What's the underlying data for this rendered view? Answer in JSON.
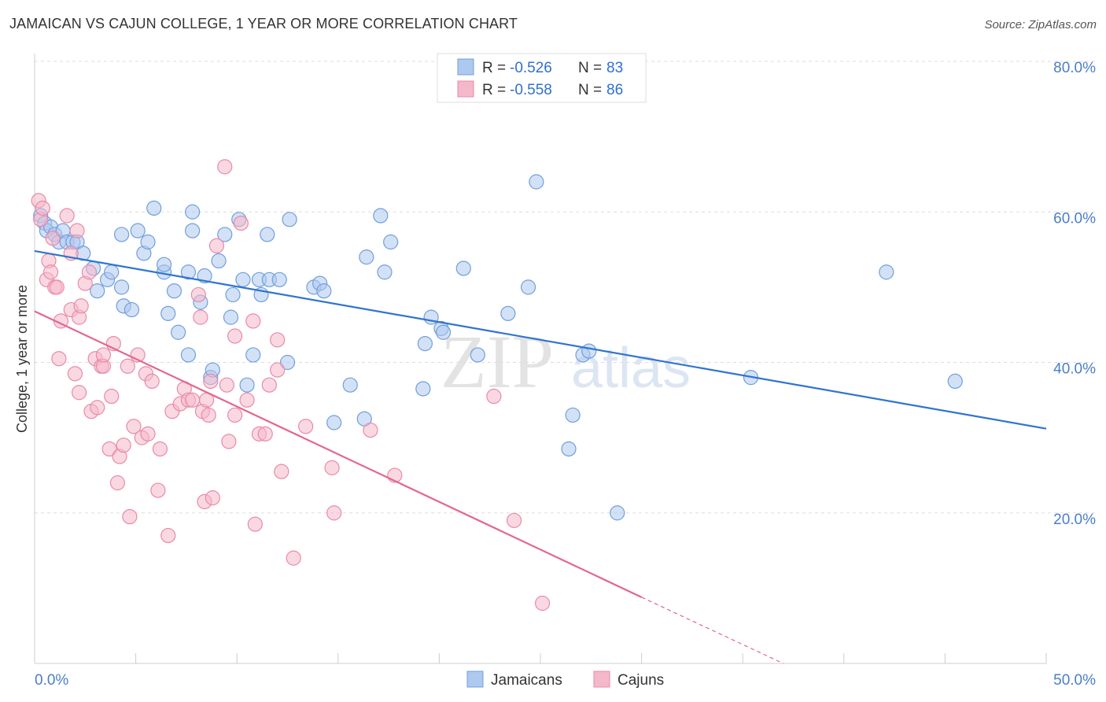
{
  "header": {
    "title": "JAMAICAN VS CAJUN COLLEGE, 1 YEAR OR MORE CORRELATION CHART",
    "source": "Source: ZipAtlas.com"
  },
  "watermark": {
    "zip": "ZIP",
    "atlas": "atlas"
  },
  "colors": {
    "blue_fill": "#aec9ef",
    "blue_stroke": "#6f9fdd",
    "blue_line": "#2f74d0",
    "pink_fill": "#f5b8cb",
    "pink_stroke": "#e98aa8",
    "pink_line": "#e2668f",
    "tick_color": "#4a7ec8",
    "grid": "#dddddd"
  },
  "legend": {
    "r_label": "R =",
    "n_label": "N =",
    "rows": [
      {
        "r": "-0.526",
        "n": "83"
      },
      {
        "r": "-0.558",
        "n": "86"
      }
    ]
  },
  "chart_data": {
    "type": "scatter",
    "title": "JAMAICAN VS CAJUN COLLEGE, 1 YEAR OR MORE CORRELATION CHART",
    "xlabel": "",
    "ylabel": "College, 1 year or more",
    "xlim": [
      0,
      50
    ],
    "ylim": [
      0,
      80
    ],
    "x_tick_labels": [
      "0.0%",
      "50.0%"
    ],
    "y_tick_labels": [
      "20.0%",
      "40.0%",
      "60.0%",
      "80.0%"
    ],
    "y_ticks": [
      20,
      40,
      60,
      80
    ],
    "grid": "horizontal dashed",
    "legend_position": "top-center",
    "series": [
      {
        "name": "Jamaicans",
        "points": [
          [
            0.3,
            59.5
          ],
          [
            0.5,
            58.5
          ],
          [
            0.6,
            57.5
          ],
          [
            0.8,
            58
          ],
          [
            1.0,
            57
          ],
          [
            1.2,
            56
          ],
          [
            1.4,
            57.5
          ],
          [
            1.6,
            56
          ],
          [
            1.9,
            56
          ],
          [
            2.1,
            56
          ],
          [
            2.4,
            54.5
          ],
          [
            2.9,
            52.5
          ],
          [
            3.1,
            49.5
          ],
          [
            3.6,
            51
          ],
          [
            3.8,
            52
          ],
          [
            4.3,
            50
          ],
          [
            4.4,
            47.5
          ],
          [
            4.3,
            57
          ],
          [
            5.1,
            57.5
          ],
          [
            4.8,
            47
          ],
          [
            5.4,
            54.5
          ],
          [
            5.6,
            56
          ],
          [
            5.9,
            60.5
          ],
          [
            6.4,
            52
          ],
          [
            6.4,
            53
          ],
          [
            6.6,
            46.5
          ],
          [
            6.9,
            49.5
          ],
          [
            7.1,
            44
          ],
          [
            7.6,
            52
          ],
          [
            7.6,
            41
          ],
          [
            7.8,
            57.5
          ],
          [
            7.8,
            60
          ],
          [
            8.2,
            48
          ],
          [
            8.4,
            51.5
          ],
          [
            8.7,
            38
          ],
          [
            8.8,
            39
          ],
          [
            9.1,
            53.5
          ],
          [
            9.4,
            57
          ],
          [
            9.7,
            46
          ],
          [
            9.8,
            49
          ],
          [
            10.1,
            59
          ],
          [
            10.3,
            51
          ],
          [
            10.5,
            37
          ],
          [
            10.8,
            41
          ],
          [
            11.1,
            51
          ],
          [
            11.2,
            49
          ],
          [
            11.5,
            57
          ],
          [
            11.6,
            51
          ],
          [
            12.1,
            51
          ],
          [
            12.5,
            40
          ],
          [
            12.6,
            59
          ],
          [
            13.8,
            50
          ],
          [
            14.1,
            50.5
          ],
          [
            14.3,
            49.5
          ],
          [
            14.8,
            32
          ],
          [
            15.6,
            37
          ],
          [
            16.3,
            32.5
          ],
          [
            16.4,
            54
          ],
          [
            17.1,
            59.5
          ],
          [
            17.3,
            52
          ],
          [
            17.6,
            56
          ],
          [
            19.2,
            36.5
          ],
          [
            19.3,
            42.5
          ],
          [
            19.6,
            46
          ],
          [
            20.1,
            44.5
          ],
          [
            20.2,
            44
          ],
          [
            21.2,
            52.5
          ],
          [
            21.9,
            41
          ],
          [
            23.4,
            46.5
          ],
          [
            24.4,
            50
          ],
          [
            24.8,
            64
          ],
          [
            26.4,
            28.5
          ],
          [
            26.6,
            33
          ],
          [
            27.1,
            41
          ],
          [
            27.4,
            41.5
          ],
          [
            28.8,
            20
          ],
          [
            35.4,
            38
          ],
          [
            42.1,
            52
          ],
          [
            45.5,
            37.5
          ]
        ],
        "trend": {
          "x": [
            0,
            50
          ],
          "y": [
            54.8,
            31.2
          ]
        }
      },
      {
        "name": "Cajuns",
        "points": [
          [
            0.2,
            61.5
          ],
          [
            0.3,
            59
          ],
          [
            0.4,
            60.5
          ],
          [
            0.6,
            51
          ],
          [
            0.7,
            53.5
          ],
          [
            0.8,
            52
          ],
          [
            0.9,
            56.5
          ],
          [
            1.0,
            50
          ],
          [
            1.1,
            50
          ],
          [
            1.2,
            40.5
          ],
          [
            1.3,
            45.5
          ],
          [
            1.6,
            59.5
          ],
          [
            1.8,
            54.5
          ],
          [
            1.8,
            47
          ],
          [
            2.0,
            38.5
          ],
          [
            2.1,
            57.5
          ],
          [
            2.2,
            46
          ],
          [
            2.2,
            36
          ],
          [
            2.3,
            47.5
          ],
          [
            2.5,
            50.5
          ],
          [
            2.7,
            52
          ],
          [
            2.8,
            33.5
          ],
          [
            3.0,
            40.5
          ],
          [
            3.1,
            34
          ],
          [
            3.3,
            39.5
          ],
          [
            3.4,
            39.5
          ],
          [
            3.4,
            41
          ],
          [
            3.7,
            28.5
          ],
          [
            3.8,
            35.5
          ],
          [
            3.9,
            42.5
          ],
          [
            4.1,
            24
          ],
          [
            4.2,
            27.5
          ],
          [
            4.4,
            29
          ],
          [
            4.6,
            39.5
          ],
          [
            4.7,
            19.5
          ],
          [
            4.9,
            31.5
          ],
          [
            5.1,
            41
          ],
          [
            5.3,
            30
          ],
          [
            5.5,
            38.5
          ],
          [
            5.6,
            30.5
          ],
          [
            5.8,
            37.5
          ],
          [
            6.1,
            23
          ],
          [
            6.2,
            28.5
          ],
          [
            6.6,
            17
          ],
          [
            6.8,
            33.5
          ],
          [
            7.2,
            34.5
          ],
          [
            7.4,
            36.5
          ],
          [
            7.6,
            35
          ],
          [
            7.8,
            35
          ],
          [
            8.1,
            49
          ],
          [
            8.2,
            46
          ],
          [
            8.3,
            33.5
          ],
          [
            8.4,
            21.5
          ],
          [
            8.5,
            35
          ],
          [
            8.6,
            33
          ],
          [
            8.7,
            37.5
          ],
          [
            8.8,
            22
          ],
          [
            9.0,
            55.5
          ],
          [
            9.4,
            66
          ],
          [
            9.5,
            37
          ],
          [
            9.6,
            29.5
          ],
          [
            9.9,
            33
          ],
          [
            9.9,
            43.5
          ],
          [
            10.2,
            58.5
          ],
          [
            10.5,
            35
          ],
          [
            10.8,
            45.5
          ],
          [
            10.9,
            18.5
          ],
          [
            11.1,
            30.5
          ],
          [
            11.4,
            30.5
          ],
          [
            11.6,
            37
          ],
          [
            12.0,
            43
          ],
          [
            12.0,
            39
          ],
          [
            12.2,
            25.5
          ],
          [
            12.8,
            14
          ],
          [
            13.4,
            31.5
          ],
          [
            14.7,
            26
          ],
          [
            14.8,
            20
          ],
          [
            16.6,
            31
          ],
          [
            17.8,
            25
          ],
          [
            22.7,
            35.5
          ],
          [
            23.7,
            19
          ],
          [
            25.1,
            8
          ]
        ],
        "trend": {
          "x": [
            0,
            30
          ],
          "y": [
            46.8,
            8.8
          ]
        },
        "trend_dashed": {
          "x": [
            30,
            37
          ],
          "y": [
            8.8,
            0
          ]
        }
      }
    ]
  },
  "bottom_legend": [
    {
      "label": "Jamaicans"
    },
    {
      "label": "Cajuns"
    }
  ]
}
